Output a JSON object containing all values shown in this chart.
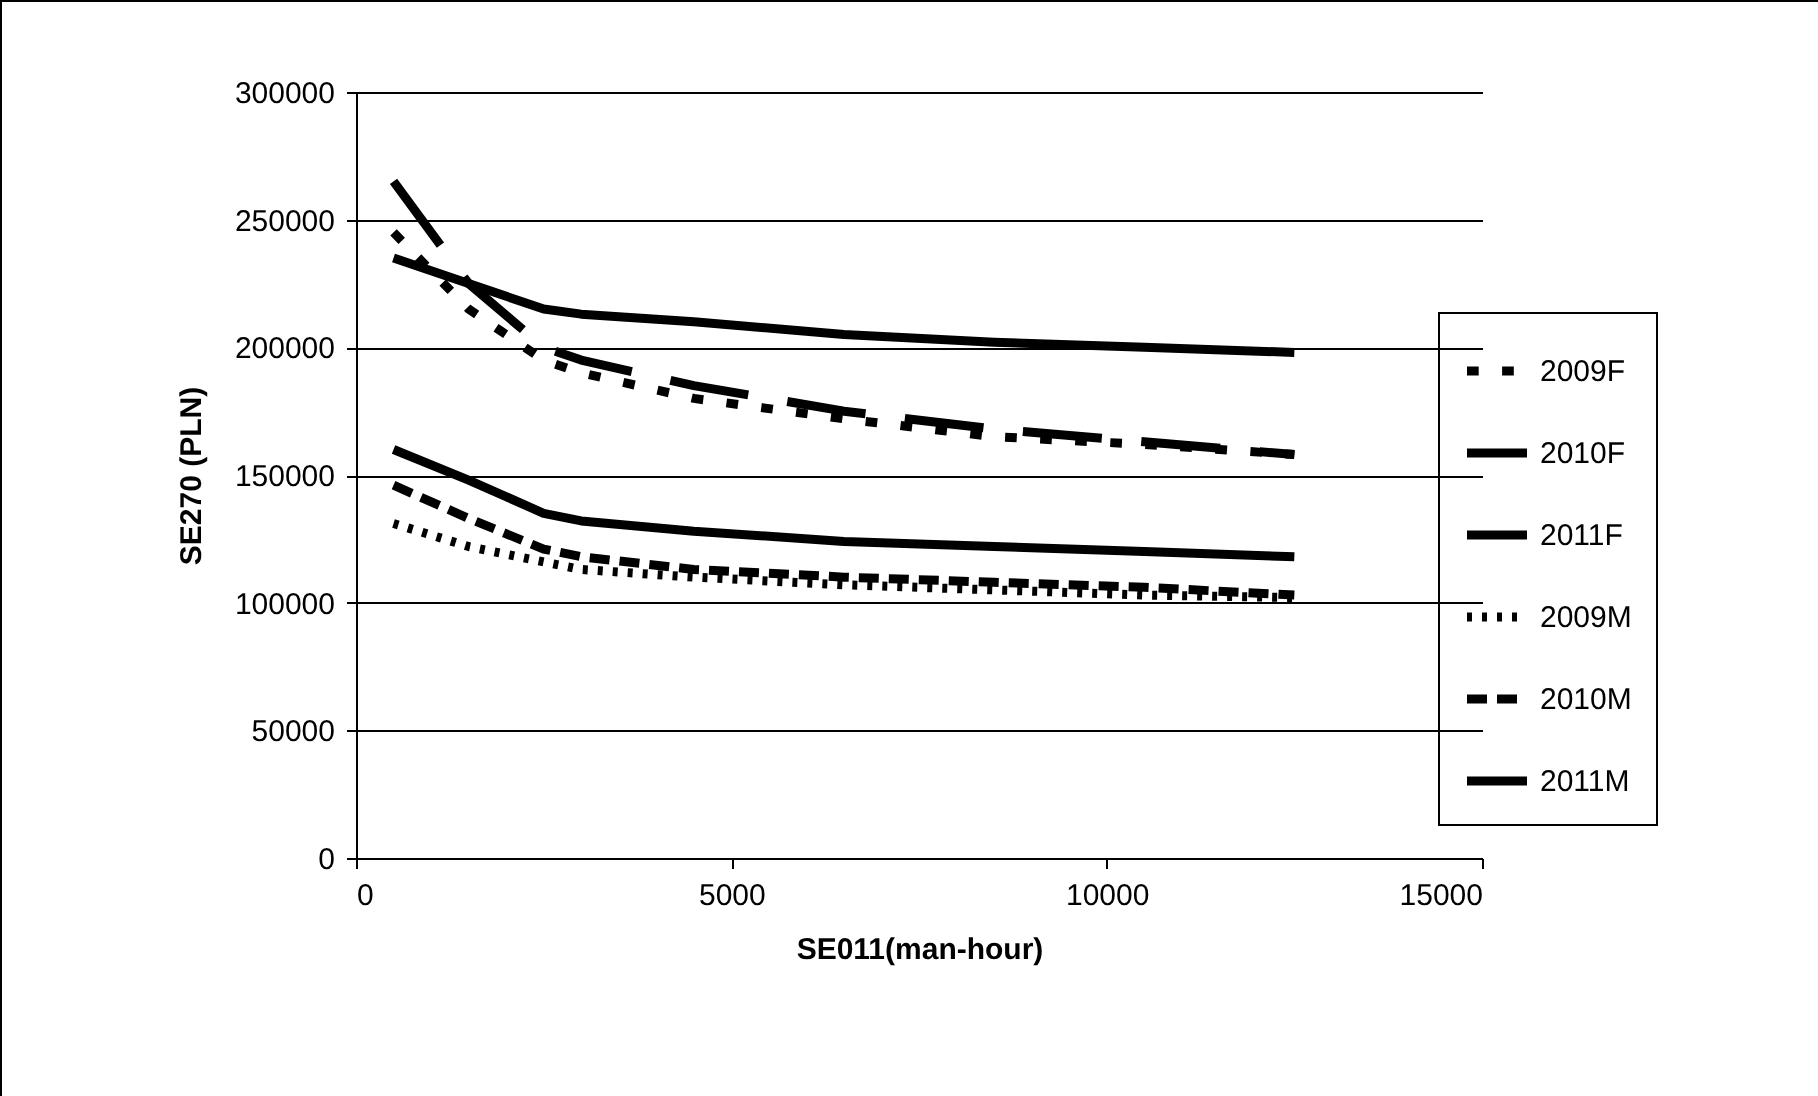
{
  "chart_data": {
    "type": "line",
    "xlabel": "SE011(man-hour)",
    "ylabel": "SE270 (PLN)",
    "x": [
      500,
      1500,
      2500,
      3000,
      4500,
      6500,
      8500,
      10500,
      12500
    ],
    "xlim": [
      0,
      15000
    ],
    "xticks": [
      0,
      5000,
      10000,
      15000
    ],
    "ylim": [
      0,
      300000
    ],
    "yticks": [
      0,
      50000,
      100000,
      150000,
      200000,
      250000,
      300000
    ],
    "grid": "y",
    "legend": "right",
    "marker": "none",
    "series": [
      {
        "name": "2009F",
        "color": "#000000",
        "line_style": "dotted",
        "values": [
          245000,
          215000,
          195000,
          190000,
          180000,
          172000,
          165000,
          162000,
          158000
        ]
      },
      {
        "name": "2010F",
        "color": "#000000",
        "line_style": "dashed",
        "values": [
          265000,
          225000,
          200000,
          195000,
          185000,
          175000,
          168000,
          163000,
          158000
        ]
      },
      {
        "name": "2011F",
        "color": "#000000",
        "line_style": "solid",
        "values": [
          235000,
          225000,
          215000,
          213000,
          210000,
          205000,
          202000,
          200000,
          198000
        ]
      },
      {
        "name": "2009M",
        "color": "#000000",
        "line_style": "dotted",
        "values": [
          131000,
          122000,
          116000,
          113000,
          110000,
          107000,
          105000,
          103000,
          102000
        ]
      },
      {
        "name": "2010M",
        "color": "#000000",
        "line_style": "dashed",
        "values": [
          146000,
          133000,
          121000,
          118000,
          113000,
          110000,
          108000,
          106000,
          103000
        ]
      },
      {
        "name": "2011M",
        "color": "#000000",
        "line_style": "solid",
        "values": [
          160000,
          148000,
          135000,
          132000,
          128000,
          124000,
          122000,
          120000,
          118000
        ]
      }
    ]
  }
}
